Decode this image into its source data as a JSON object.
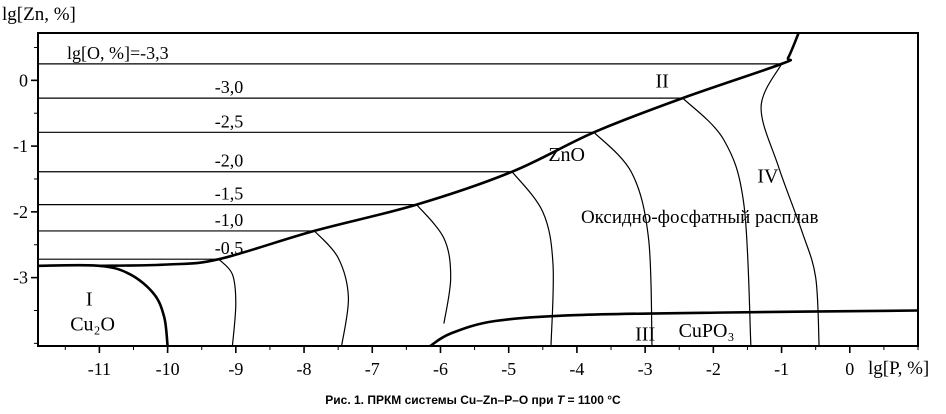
{
  "chart_data": {
    "type": "phase-diagram",
    "ylabel": "lg[Zn, %]",
    "xlabel": "lg[P, %]",
    "xlim": [
      -11.9,
      1.0
    ],
    "ylim": [
      -4.04,
      0.72
    ],
    "x_ticks": [
      -11,
      -10,
      -9,
      -8,
      -7,
      -6,
      -5,
      -4,
      -3,
      -2,
      -1,
      0
    ],
    "x_tick_labels": [
      "-11",
      "-10",
      "-9",
      "-8",
      "-7",
      "-6",
      "-5",
      "-4",
      "-3",
      "-2",
      "-1",
      "0"
    ],
    "y_ticks": [
      0,
      -1,
      -2,
      -3
    ],
    "y_tick_labels": [
      "0",
      "-1",
      "-2",
      "-3"
    ],
    "isoconcentration_lines": [
      {
        "label": "lg[O, %]=-3,3",
        "y": 0.25,
        "x_end": -1.0
      },
      {
        "label": "-3,0",
        "y": -0.27,
        "x_end": -2.45
      },
      {
        "label": "-2,5",
        "y": -0.79,
        "x_end": -3.75
      },
      {
        "label": "-2,0",
        "y": -1.39,
        "x_end": -4.95
      },
      {
        "label": "-1,5",
        "y": -1.89,
        "x_end": -6.35
      },
      {
        "label": "-1,0",
        "y": -2.29,
        "x_end": -7.85
      },
      {
        "label": "-0,5",
        "y": -2.72,
        "x_end": -9.25
      }
    ],
    "region_labels": [
      {
        "text": "I",
        "x": -11.15,
        "y": -3.32
      },
      {
        "text": "Cu₂O",
        "x": -11.1,
        "y": -3.7
      },
      {
        "text": "II",
        "x": -2.75,
        "y": 0.0
      },
      {
        "text": "ZnO",
        "x": -4.15,
        "y": -1.12
      },
      {
        "text": "III",
        "x": -3.0,
        "y": -3.85
      },
      {
        "text": "CuPO₃",
        "x": -2.1,
        "y": -3.8
      },
      {
        "text": "IV",
        "x": -1.2,
        "y": -1.45
      },
      {
        "text": "Оксидно-фосфатный расплав",
        "x": -2.2,
        "y": -2.06
      }
    ],
    "boundaries": {
      "cu2o_corner": [
        [
          -11.9,
          -2.82
        ],
        [
          -11.0,
          -2.82
        ],
        [
          -10.55,
          -2.95
        ],
        [
          -10.2,
          -3.25
        ],
        [
          -10.05,
          -3.6
        ],
        [
          -10.0,
          -4.04
        ]
      ],
      "zno_melt": [
        [
          -11.0,
          -2.82
        ],
        [
          -10.0,
          -2.8
        ],
        [
          -9.25,
          -2.72
        ],
        [
          -7.85,
          -2.29
        ],
        [
          -6.35,
          -1.89
        ],
        [
          -4.95,
          -1.39
        ],
        [
          -3.75,
          -0.79
        ],
        [
          -2.45,
          -0.27
        ],
        [
          -1.0,
          0.25
        ],
        [
          -0.9,
          0.35
        ],
        [
          -0.75,
          0.72
        ]
      ],
      "cupo3_top": [
        [
          -6.15,
          -4.04
        ],
        [
          -5.85,
          -3.85
        ],
        [
          -5.2,
          -3.66
        ],
        [
          -4.0,
          -3.57
        ],
        [
          -1.8,
          -3.53
        ],
        [
          1.0,
          -3.5
        ]
      ],
      "liquidus": [
        [
          [
            -9.25,
            -2.72
          ],
          [
            -9.05,
            -2.95
          ],
          [
            -9.0,
            -3.4
          ],
          [
            -9.05,
            -4.04
          ]
        ],
        [
          [
            -7.85,
            -2.29
          ],
          [
            -7.5,
            -2.7
          ],
          [
            -7.35,
            -3.3
          ],
          [
            -7.45,
            -4.04
          ]
        ],
        [
          [
            -6.35,
            -1.89
          ],
          [
            -5.95,
            -2.4
          ],
          [
            -5.85,
            -3.0
          ],
          [
            -5.95,
            -3.7
          ]
        ],
        [
          [
            -4.95,
            -1.39
          ],
          [
            -4.5,
            -2.0
          ],
          [
            -4.35,
            -2.8
          ],
          [
            -4.38,
            -4.04
          ]
        ],
        [
          [
            -3.75,
            -0.79
          ],
          [
            -3.2,
            -1.4
          ],
          [
            -2.95,
            -2.4
          ],
          [
            -2.9,
            -4.04
          ]
        ],
        [
          [
            -2.45,
            -0.27
          ],
          [
            -1.85,
            -0.9
          ],
          [
            -1.55,
            -1.9
          ],
          [
            -1.45,
            -4.04
          ]
        ],
        [
          [
            -1.0,
            0.25
          ],
          [
            -1.3,
            -0.4
          ],
          [
            -1.05,
            -1.3
          ],
          [
            -0.7,
            -2.3
          ],
          [
            -0.5,
            -3.0
          ],
          [
            -0.45,
            -4.04
          ]
        ]
      ]
    }
  },
  "caption": {
    "prefix": "Рис. 1. ПРКМ системы Cu–Zn–P–O при ",
    "var": "T",
    "suffix": " = 1100 °C"
  }
}
